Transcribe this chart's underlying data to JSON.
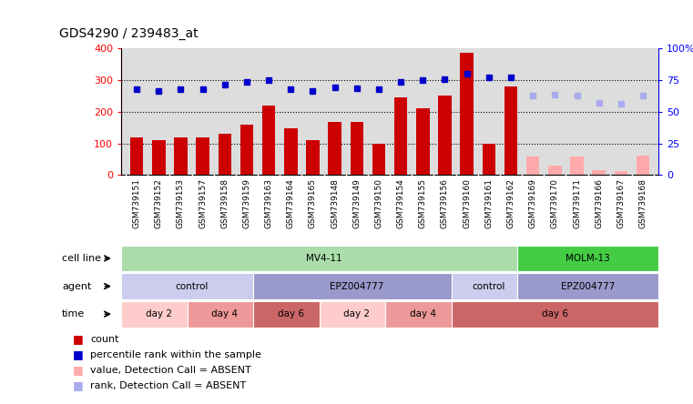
{
  "title": "GDS4290 / 239483_at",
  "samples": [
    "GSM739151",
    "GSM739152",
    "GSM739153",
    "GSM739157",
    "GSM739158",
    "GSM739159",
    "GSM739163",
    "GSM739164",
    "GSM739165",
    "GSM739148",
    "GSM739149",
    "GSM739150",
    "GSM739154",
    "GSM739155",
    "GSM739156",
    "GSM739160",
    "GSM739161",
    "GSM739162",
    "GSM739169",
    "GSM739170",
    "GSM739171",
    "GSM739166",
    "GSM739167",
    "GSM739168"
  ],
  "counts": [
    120,
    110,
    120,
    120,
    130,
    160,
    220,
    148,
    110,
    168,
    168,
    100,
    245,
    210,
    252,
    385,
    100,
    280,
    57,
    30,
    57,
    14,
    12,
    60
  ],
  "absent_flags": [
    false,
    false,
    false,
    false,
    false,
    false,
    false,
    false,
    false,
    false,
    false,
    false,
    false,
    false,
    false,
    false,
    false,
    false,
    true,
    true,
    true,
    true,
    true,
    true
  ],
  "ranks": [
    270,
    265,
    270,
    272,
    285,
    295,
    300,
    272,
    265,
    278,
    275,
    270,
    295,
    300,
    302,
    320,
    308,
    308,
    252,
    255,
    252,
    228,
    225,
    252
  ],
  "rank_absent_flags": [
    false,
    false,
    false,
    false,
    false,
    false,
    false,
    false,
    false,
    false,
    false,
    false,
    false,
    false,
    false,
    false,
    false,
    false,
    true,
    true,
    true,
    true,
    true,
    true
  ],
  "bar_color_present": "#cc0000",
  "bar_color_absent": "#ffaaaa",
  "rank_color_present": "#0000cc",
  "rank_color_absent": "#aaaaee",
  "ylim_left": [
    0,
    400
  ],
  "ylim_right": [
    0,
    100
  ],
  "yticks_left": [
    0,
    100,
    200,
    300,
    400
  ],
  "yticks_right": [
    0,
    25,
    50,
    75,
    100
  ],
  "grid_lines": [
    100,
    200,
    300
  ],
  "cell_line_groups": [
    {
      "label": "MV4-11",
      "start": 0,
      "end": 18,
      "color": "#aaddaa"
    },
    {
      "label": "MOLM-13",
      "start": 18,
      "end": 24,
      "color": "#44cc44"
    }
  ],
  "agent_groups": [
    {
      "label": "control",
      "start": 0,
      "end": 6,
      "color": "#ccccee"
    },
    {
      "label": "EPZ004777",
      "start": 6,
      "end": 15,
      "color": "#9999cc"
    },
    {
      "label": "control",
      "start": 15,
      "end": 18,
      "color": "#ccccee"
    },
    {
      "label": "EPZ004777",
      "start": 18,
      "end": 24,
      "color": "#9999cc"
    }
  ],
  "time_groups": [
    {
      "label": "day 2",
      "start": 0,
      "end": 3,
      "color": "#ffcccc"
    },
    {
      "label": "day 4",
      "start": 3,
      "end": 6,
      "color": "#ee9999"
    },
    {
      "label": "day 6",
      "start": 6,
      "end": 9,
      "color": "#cc6666"
    },
    {
      "label": "day 2",
      "start": 9,
      "end": 12,
      "color": "#ffcccc"
    },
    {
      "label": "day 4",
      "start": 12,
      "end": 15,
      "color": "#ee9999"
    },
    {
      "label": "day 6",
      "start": 15,
      "end": 24,
      "color": "#cc6666"
    }
  ],
  "legend_items": [
    {
      "color": "#cc0000",
      "label": "count"
    },
    {
      "color": "#0000cc",
      "label": "percentile rank within the sample"
    },
    {
      "color": "#ffaaaa",
      "label": "value, Detection Call = ABSENT"
    },
    {
      "color": "#aaaaee",
      "label": "rank, Detection Call = ABSENT"
    }
  ],
  "background_color": "#ffffff",
  "plot_bg_color": "#dddddd",
  "xtick_bg_color": "#cccccc"
}
